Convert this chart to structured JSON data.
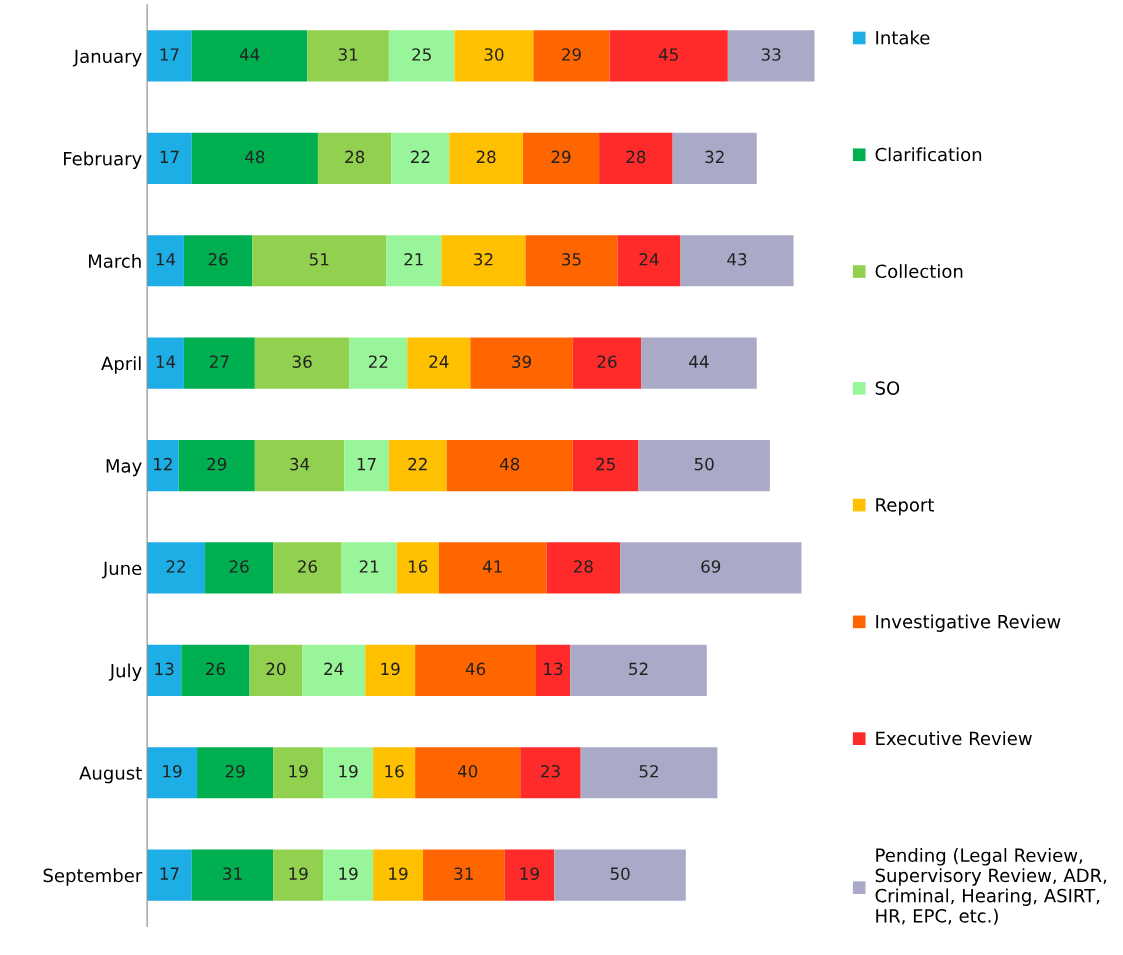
{
  "chart_data": {
    "type": "bar",
    "orientation": "horizontal",
    "stacked": true,
    "data_labels": true,
    "grid": false,
    "legend": "right",
    "categories": [
      "January",
      "February",
      "March",
      "April",
      "May",
      "June",
      "July",
      "August",
      "September"
    ],
    "series": [
      {
        "name": "Intake",
        "color": "#1eaee6",
        "values": [
          17,
          17,
          14,
          14,
          12,
          22,
          13,
          19,
          17
        ]
      },
      {
        "name": "Clarification",
        "color": "#00b050",
        "values": [
          44,
          48,
          26,
          27,
          29,
          26,
          26,
          29,
          31
        ]
      },
      {
        "name": "Collection",
        "color": "#92d050",
        "values": [
          31,
          28,
          51,
          36,
          34,
          26,
          20,
          19,
          19
        ]
      },
      {
        "name": "SO",
        "color": "#99f599",
        "values": [
          25,
          22,
          21,
          22,
          17,
          21,
          24,
          19,
          19
        ]
      },
      {
        "name": "Report",
        "color": "#ffc000",
        "values": [
          30,
          28,
          32,
          24,
          22,
          16,
          19,
          16,
          19
        ]
      },
      {
        "name": "Investigative Review",
        "color": "#ff6600",
        "values": [
          29,
          29,
          35,
          39,
          48,
          41,
          46,
          40,
          31
        ]
      },
      {
        "name": "Executive Review",
        "color": "#ff2a2a",
        "values": [
          45,
          28,
          24,
          26,
          25,
          28,
          13,
          23,
          19
        ]
      },
      {
        "name": "Pending (Legal Review,\nSupervisory Review, ADR,\nCriminal, Hearing, ASIRT,\nHR, EPC, etc.)",
        "color": "#aaaac8",
        "values": [
          33,
          32,
          43,
          44,
          50,
          69,
          52,
          52,
          50
        ]
      }
    ]
  }
}
